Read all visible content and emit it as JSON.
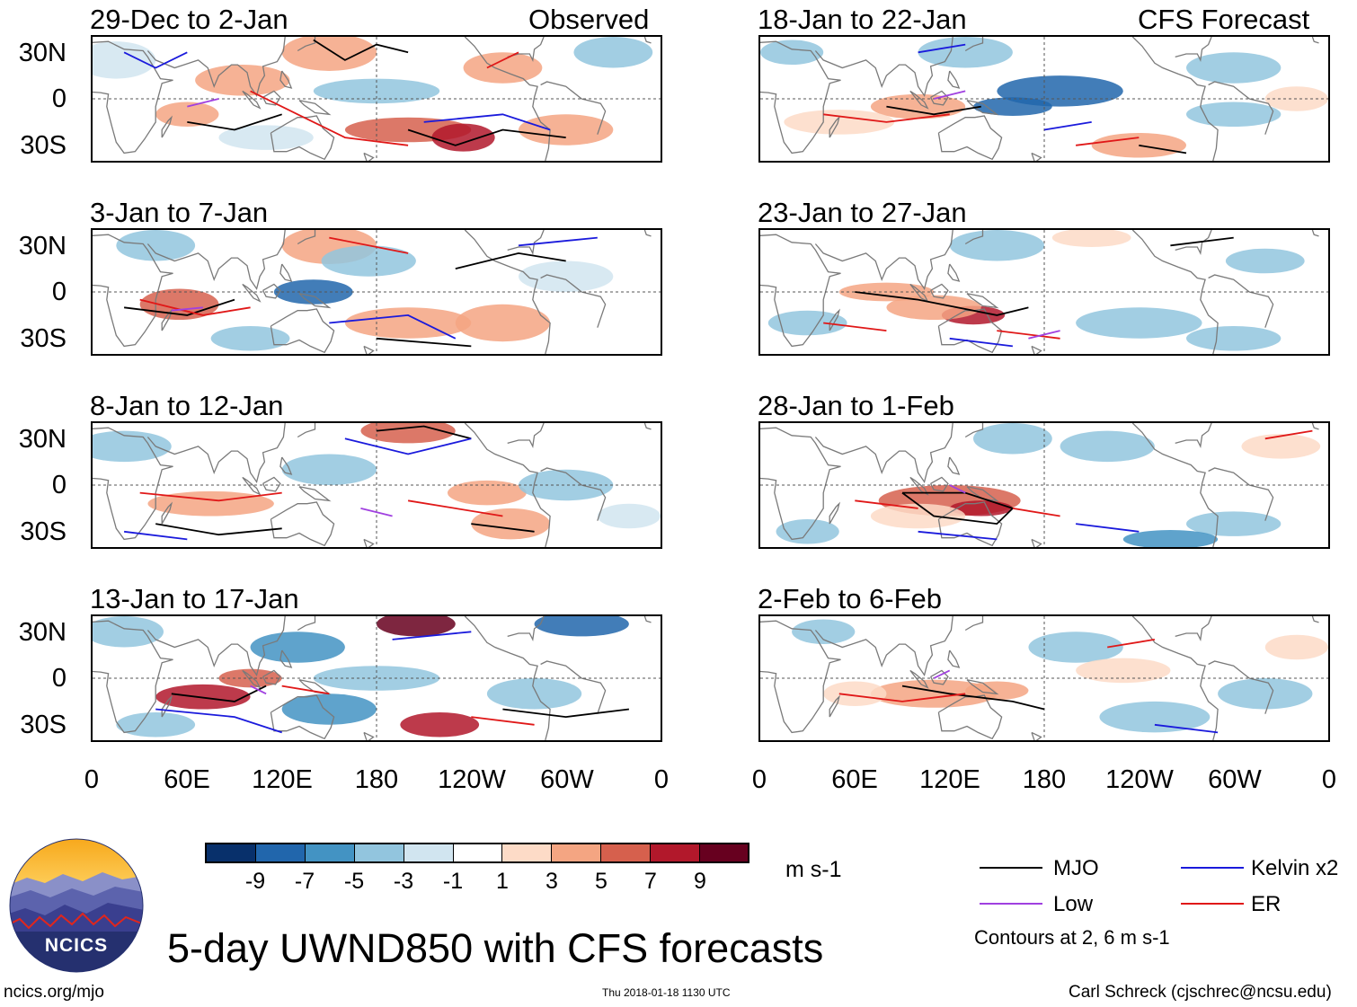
{
  "figure": {
    "title": "5-day UWND850 with CFS forecasts",
    "source_url": "ncics.org/mjo",
    "timestamp": "Thu 2018-01-18 1130 UTC",
    "author": "Carl Schreck (cjschrec@ncsu.edu)",
    "logo_text": "NCICS"
  },
  "columns": {
    "left_label": "Observed",
    "right_label": "CFS Forecast"
  },
  "chart_data": {
    "type": "heatmap",
    "variable": "850-hPa zonal wind anomaly (UWND850)",
    "units": "m s-1",
    "colorbar": {
      "ticks": [
        "-9",
        "-7",
        "-5",
        "-3",
        "-1",
        "1",
        "3",
        "5",
        "7",
        "9"
      ],
      "colors": [
        "#08306b",
        "#2166ac",
        "#4393c3",
        "#92c5de",
        "#d1e5f0",
        "#ffffff",
        "#fddbc7",
        "#f4a582",
        "#d6604d",
        "#b2182b",
        "#67001f"
      ]
    },
    "x_ticks": [
      "0",
      "60E",
      "120E",
      "180",
      "120W",
      "60W",
      "0"
    ],
    "y_ticks": [
      "30N",
      "0",
      "30S"
    ],
    "xlim": [
      0,
      360
    ],
    "ylim": [
      -40,
      40
    ],
    "panels": [
      {
        "period": "29-Dec to 2-Jan",
        "type": "Observed"
      },
      {
        "period": "3-Jan to 7-Jan",
        "type": "Observed"
      },
      {
        "period": "8-Jan to 12-Jan",
        "type": "Observed"
      },
      {
        "period": "13-Jan to 17-Jan",
        "type": "Observed"
      },
      {
        "period": "18-Jan to 22-Jan",
        "type": "CFS Forecast"
      },
      {
        "period": "23-Jan to 27-Jan",
        "type": "CFS Forecast"
      },
      {
        "period": "28-Jan to 1-Feb",
        "type": "CFS Forecast"
      },
      {
        "period": "2-Feb to 6-Feb",
        "type": "CFS Forecast"
      }
    ],
    "legend": [
      {
        "label": "MJO",
        "color": "#000000"
      },
      {
        "label": "Kelvin x2",
        "color": "#1a1adc"
      },
      {
        "label": "Low",
        "color": "#a040e0"
      },
      {
        "label": "ER",
        "color": "#e01818"
      }
    ],
    "contour_note": "Contours at 2, 6 m s-1"
  }
}
